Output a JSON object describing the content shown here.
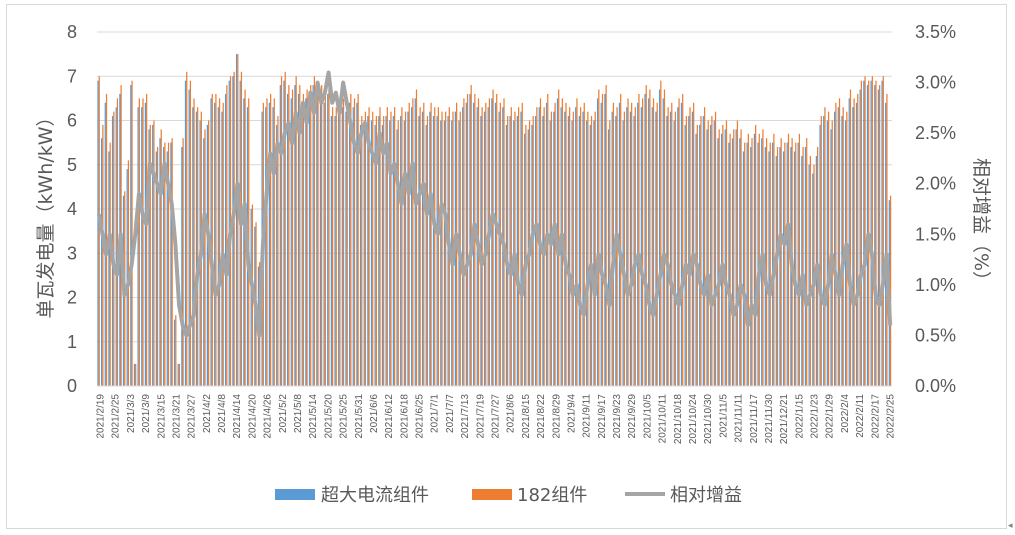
{
  "chart_data": {
    "type": "bar",
    "title": "",
    "ylabel": "单瓦发电量（kWh/kW）",
    "y2label": "相对增益（%）",
    "ylim": [
      0,
      8
    ],
    "y2lim": [
      0,
      3.5
    ],
    "y_ticks": [
      "0",
      "1",
      "2",
      "3",
      "4",
      "5",
      "6",
      "7",
      "8"
    ],
    "y2_ticks": [
      "0.0%",
      "0.5%",
      "1.0%",
      "1.5%",
      "2.0%",
      "2.5%",
      "3.0%",
      "3.5%"
    ],
    "x_tick_labels": [
      "2021/2/19",
      "2021/2/25",
      "2021/3/3",
      "2021/3/9",
      "2021/3/15",
      "2021/3/21",
      "2021/3/27",
      "2021/4/2",
      "2021/4/8",
      "2021/4/14",
      "2021/4/20",
      "2021/4/26",
      "2021/5/2",
      "2021/5/8",
      "2021/5/14",
      "2021/5/20",
      "2021/5/25",
      "2021/5/31",
      "2021/6/6",
      "2021/6/12",
      "2021/6/18",
      "2021/6/25",
      "2021/7/1",
      "2021/7/7",
      "2021/7/13",
      "2021/7/19",
      "2021/7/27",
      "2021/8/6",
      "2021/8/15",
      "2021/8/22",
      "2021/8/29",
      "2021/9/4",
      "2021/9/11",
      "2021/9/17",
      "2021/9/23",
      "2021/9/29",
      "2021/10/5",
      "2021/10/11",
      "2021/10/18",
      "2021/10/24",
      "2021/10/30",
      "2021/11/5",
      "2021/11/11",
      "2021/11/17",
      "2021/11/30",
      "2021/12/21",
      "2022/1/15",
      "2022/1/23",
      "2022/1/29",
      "2022/2/4",
      "2022/2/11",
      "2022/2/17",
      "2022/2/25"
    ],
    "legend_position": "bottom",
    "series": [
      {
        "name": "超大电流组件",
        "kind": "bar",
        "axis": "left",
        "color": "#5B9BD5",
        "values": [
          6.9,
          5.6,
          6.4,
          5.3,
          6.1,
          6.3,
          6.6,
          4.3,
          4.9,
          6.8,
          0.5,
          6.3,
          6.3,
          6.4,
          5.8,
          5.9,
          5.3,
          5.6,
          5.4,
          5.3,
          5.5,
          1.5,
          0.5,
          5.4,
          6.9,
          6.7,
          6.3,
          6.2,
          6.0,
          5.6,
          5.9,
          6.5,
          6.4,
          6.3,
          6.2,
          6.6,
          6.9,
          7.0,
          7.5,
          6.9,
          6.5,
          6.3,
          4.0,
          3.6,
          2.7,
          6.2,
          6.3,
          6.4,
          6.3,
          5.9,
          6.8,
          6.9,
          6.6,
          6.5,
          6.8,
          6.6,
          6.4,
          6.5,
          6.6,
          6.8,
          6.5,
          6.6,
          6.4,
          6.6,
          6.1,
          6.1,
          6.2,
          6.3,
          6.2,
          6.4,
          6.3,
          6.4,
          5.9,
          6.0,
          6.1,
          6.0,
          5.9,
          6.1,
          5.9,
          6.1,
          6.0,
          6.1,
          5.8,
          6.1,
          6.0,
          6.2,
          6.3,
          6.5,
          6.1,
          6.2,
          5.9,
          6.2,
          6.1,
          6.1,
          6.0,
          6.0,
          6.1,
          6.0,
          6.2,
          6.0,
          6.3,
          6.4,
          6.6,
          6.4,
          6.3,
          6.1,
          6.2,
          6.3,
          6.5,
          6.4,
          6.2,
          6.3,
          5.9,
          6.1,
          6.0,
          6.1,
          6.2,
          5.7,
          5.8,
          5.9,
          6.1,
          6.3,
          6.1,
          6.4,
          6.0,
          6.2,
          6.5,
          6.3,
          6.2,
          6.1,
          6.0,
          6.3,
          6.1,
          6.2,
          6.0,
          5.9,
          6.0,
          6.5,
          6.4,
          6.6,
          5.8,
          6.2,
          6.1,
          6.4,
          6.0,
          6.3,
          6.2,
          6.1,
          6.4,
          6.3,
          6.6,
          6.5,
          6.3,
          6.2,
          6.7,
          6.5,
          6.1,
          6.2,
          6.0,
          6.3,
          6.4,
          5.9,
          6.1,
          6.2,
          5.7,
          5.9,
          6.1,
          5.8,
          5.9,
          6.0,
          5.6,
          5.7,
          5.8,
          5.5,
          5.6,
          5.8,
          5.6,
          5.3,
          5.5,
          5.4,
          5.7,
          5.5,
          5.6,
          5.4,
          5.3,
          5.5,
          5.2,
          5.4,
          5.3,
          5.5,
          5.4,
          5.3,
          5.5,
          5.2,
          5.4,
          5.0,
          4.8,
          5.2,
          5.9,
          6.1,
          6.0,
          5.8,
          6.2,
          6.3,
          6.1,
          6.0,
          6.5,
          6.3,
          6.4,
          6.7,
          6.9,
          6.8,
          6.9,
          6.8,
          6.7,
          6.9,
          6.4,
          4.2
        ]
      },
      {
        "name": "182组件",
        "kind": "bar",
        "axis": "left",
        "color": "#ED7D31",
        "values": [
          7.0,
          5.9,
          6.6,
          5.5,
          6.2,
          6.5,
          6.8,
          4.4,
          5.1,
          6.9,
          0.5,
          6.5,
          6.5,
          6.6,
          5.9,
          6.0,
          5.4,
          5.8,
          5.5,
          5.5,
          5.6,
          1.6,
          0.5,
          5.6,
          7.1,
          6.9,
          6.5,
          6.3,
          6.2,
          5.8,
          6.0,
          6.6,
          6.6,
          6.5,
          6.4,
          6.8,
          7.0,
          7.1,
          7.5,
          7.1,
          6.7,
          6.5,
          4.1,
          3.7,
          2.8,
          6.4,
          6.5,
          6.6,
          6.5,
          6.1,
          7.0,
          7.1,
          6.8,
          6.7,
          7.0,
          6.8,
          6.6,
          6.7,
          6.8,
          7.0,
          6.7,
          6.8,
          6.6,
          6.8,
          6.3,
          6.3,
          6.4,
          6.5,
          6.4,
          6.6,
          6.5,
          6.6,
          6.1,
          6.2,
          6.3,
          6.2,
          6.1,
          6.3,
          6.1,
          6.3,
          6.2,
          6.3,
          6.0,
          6.3,
          6.2,
          6.4,
          6.5,
          6.7,
          6.3,
          6.4,
          6.1,
          6.4,
          6.3,
          6.3,
          6.2,
          6.2,
          6.3,
          6.2,
          6.4,
          6.2,
          6.5,
          6.6,
          6.8,
          6.6,
          6.5,
          6.3,
          6.4,
          6.5,
          6.7,
          6.6,
          6.4,
          6.5,
          6.1,
          6.3,
          6.2,
          6.3,
          6.4,
          5.9,
          6.0,
          6.1,
          6.3,
          6.5,
          6.3,
          6.6,
          6.2,
          6.4,
          6.7,
          6.5,
          6.4,
          6.3,
          6.2,
          6.5,
          6.3,
          6.4,
          6.2,
          6.1,
          6.2,
          6.7,
          6.6,
          6.8,
          6.0,
          6.4,
          6.3,
          6.6,
          6.2,
          6.5,
          6.4,
          6.3,
          6.6,
          6.5,
          6.8,
          6.7,
          6.5,
          6.4,
          6.9,
          6.7,
          6.3,
          6.4,
          6.2,
          6.5,
          6.6,
          6.1,
          6.3,
          6.4,
          5.9,
          6.1,
          6.3,
          6.0,
          6.1,
          6.2,
          5.8,
          5.9,
          6.0,
          5.7,
          5.8,
          6.0,
          5.8,
          5.5,
          5.7,
          5.6,
          5.9,
          5.7,
          5.8,
          5.6,
          5.5,
          5.7,
          5.4,
          5.6,
          5.5,
          5.7,
          5.6,
          5.5,
          5.7,
          5.4,
          5.6,
          5.2,
          5.0,
          5.4,
          6.1,
          6.3,
          6.2,
          6.0,
          6.4,
          6.5,
          6.3,
          6.2,
          6.7,
          6.5,
          6.6,
          6.9,
          7.0,
          6.9,
          7.0,
          6.9,
          6.8,
          7.0,
          6.6,
          4.3
        ]
      },
      {
        "name": "相对增益",
        "kind": "line",
        "axis": "right",
        "color": "#A5A5A5",
        "values": [
          1.7,
          1.5,
          1.3,
          1.5,
          1.2,
          1.1,
          1.5,
          0.9,
          1.0,
          1.2,
          1.5,
          1.9,
          1.7,
          1.6,
          2.2,
          2.1,
          2.0,
          1.9,
          2.2,
          2.0,
          1.8,
          1.4,
          0.8,
          0.6,
          0.5,
          0.6,
          0.7,
          1.1,
          1.3,
          1.7,
          1.5,
          1.2,
          0.9,
          1.0,
          1.3,
          1.1,
          1.5,
          1.7,
          2.0,
          1.6,
          1.8,
          1.2,
          1.0,
          0.8,
          0.5,
          1.4,
          1.9,
          2.3,
          2.1,
          2.4,
          2.3,
          2.5,
          2.6,
          2.4,
          2.7,
          2.5,
          2.8,
          2.6,
          2.9,
          2.7,
          3.0,
          2.8,
          2.9,
          3.1,
          2.8,
          2.9,
          2.7,
          3.0,
          2.8,
          2.6,
          2.4,
          2.3,
          2.5,
          2.6,
          2.4,
          2.3,
          2.2,
          2.5,
          2.3,
          2.4,
          2.1,
          2.2,
          2.0,
          1.8,
          2.1,
          1.9,
          2.2,
          1.8,
          1.9,
          2.0,
          1.7,
          1.9,
          1.6,
          1.5,
          1.8,
          1.7,
          1.4,
          1.2,
          1.5,
          1.3,
          1.1,
          1.2,
          1.3,
          1.6,
          1.4,
          1.2,
          1.3,
          1.5,
          1.7,
          1.6,
          1.5,
          1.4,
          1.2,
          1.1,
          1.3,
          1.0,
          0.9,
          1.2,
          1.3,
          1.5,
          1.6,
          1.4,
          1.3,
          1.5,
          1.4,
          1.6,
          1.3,
          1.5,
          1.2,
          1.1,
          0.9,
          1.0,
          0.8,
          0.7,
          1.0,
          1.2,
          0.9,
          1.3,
          1.1,
          1.0,
          0.8,
          1.2,
          1.5,
          1.3,
          1.1,
          0.9,
          1.0,
          1.2,
          1.3,
          1.1,
          1.0,
          0.8,
          0.7,
          0.9,
          1.1,
          1.3,
          1.2,
          1.0,
          0.9,
          0.8,
          1.0,
          1.2,
          1.1,
          1.3,
          1.2,
          1.0,
          0.9,
          1.1,
          0.8,
          0.9,
          1.0,
          1.2,
          1.0,
          0.9,
          0.7,
          0.8,
          1.0,
          0.9,
          0.6,
          0.8,
          0.7,
          1.1,
          1.3,
          1.0,
          0.9,
          1.1,
          1.3,
          1.5,
          1.4,
          1.6,
          1.2,
          1.0,
          0.9,
          1.1,
          0.8,
          0.9,
          1.0,
          1.2,
          0.9,
          0.8,
          1.0,
          1.3,
          1.1,
          0.9,
          1.2,
          1.4,
          1.0,
          0.8,
          0.9,
          1.1,
          1.2,
          1.5,
          1.3,
          0.9,
          0.8,
          1.0,
          1.3,
          0.6
        ]
      }
    ]
  },
  "corner_mark": "◂"
}
